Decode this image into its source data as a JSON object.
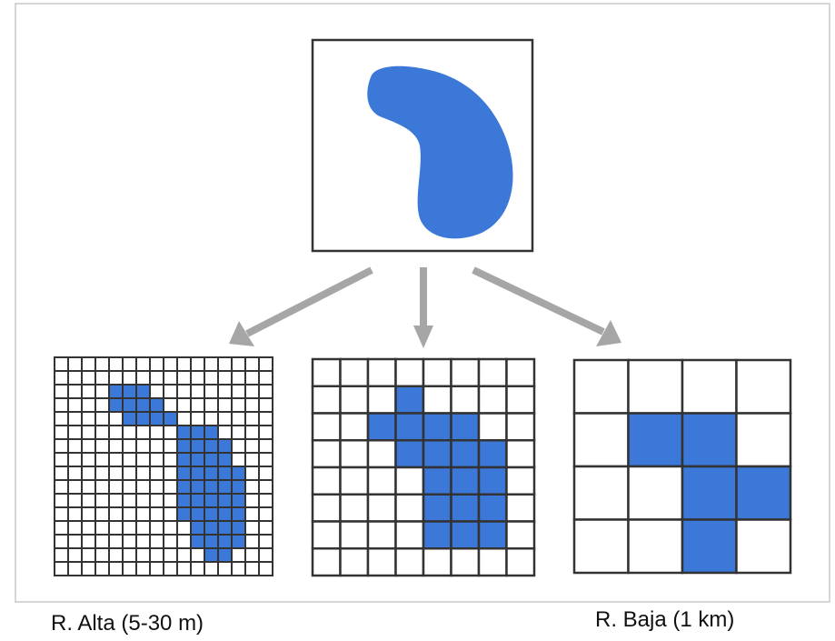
{
  "labels": {
    "high_resolution": "R. Alta (5-30 m)",
    "low_resolution": "R. Baja (1 km)"
  },
  "colors": {
    "water_fill": "#3b78d8",
    "grid_line": "#333333",
    "arrow": "#a6a6a6",
    "frame_border": "#c8c8c8"
  },
  "grids": [
    {
      "name": "high-res-grid",
      "size": 16,
      "filled": [
        [
          2,
          4
        ],
        [
          2,
          5
        ],
        [
          2,
          6
        ],
        [
          3,
          4
        ],
        [
          3,
          5
        ],
        [
          3,
          6
        ],
        [
          3,
          7
        ],
        [
          4,
          5
        ],
        [
          4,
          6
        ],
        [
          4,
          7
        ],
        [
          4,
          8
        ],
        [
          5,
          9
        ],
        [
          5,
          10
        ],
        [
          5,
          11
        ],
        [
          6,
          9
        ],
        [
          6,
          10
        ],
        [
          6,
          11
        ],
        [
          6,
          12
        ],
        [
          7,
          9
        ],
        [
          7,
          10
        ],
        [
          7,
          11
        ],
        [
          7,
          12
        ],
        [
          8,
          9
        ],
        [
          8,
          10
        ],
        [
          8,
          11
        ],
        [
          8,
          12
        ],
        [
          8,
          13
        ],
        [
          9,
          9
        ],
        [
          9,
          10
        ],
        [
          9,
          11
        ],
        [
          9,
          12
        ],
        [
          9,
          13
        ],
        [
          10,
          9
        ],
        [
          10,
          10
        ],
        [
          10,
          11
        ],
        [
          10,
          12
        ],
        [
          10,
          13
        ],
        [
          11,
          9
        ],
        [
          11,
          10
        ],
        [
          11,
          11
        ],
        [
          11,
          12
        ],
        [
          11,
          13
        ],
        [
          12,
          10
        ],
        [
          12,
          11
        ],
        [
          12,
          12
        ],
        [
          12,
          13
        ],
        [
          13,
          10
        ],
        [
          13,
          11
        ],
        [
          13,
          12
        ],
        [
          13,
          13
        ],
        [
          14,
          11
        ],
        [
          14,
          12
        ]
      ]
    },
    {
      "name": "mid-res-grid",
      "size": 8,
      "filled": [
        [
          1,
          3
        ],
        [
          2,
          2
        ],
        [
          2,
          3
        ],
        [
          2,
          4
        ],
        [
          2,
          5
        ],
        [
          3,
          3
        ],
        [
          3,
          4
        ],
        [
          3,
          5
        ],
        [
          3,
          6
        ],
        [
          4,
          4
        ],
        [
          4,
          5
        ],
        [
          4,
          6
        ],
        [
          5,
          4
        ],
        [
          5,
          5
        ],
        [
          5,
          6
        ],
        [
          6,
          4
        ],
        [
          6,
          5
        ],
        [
          6,
          6
        ]
      ]
    },
    {
      "name": "low-res-grid",
      "size": 4,
      "filled": [
        [
          1,
          1
        ],
        [
          1,
          2
        ],
        [
          2,
          2
        ],
        [
          2,
          3
        ],
        [
          3,
          2
        ]
      ]
    }
  ]
}
